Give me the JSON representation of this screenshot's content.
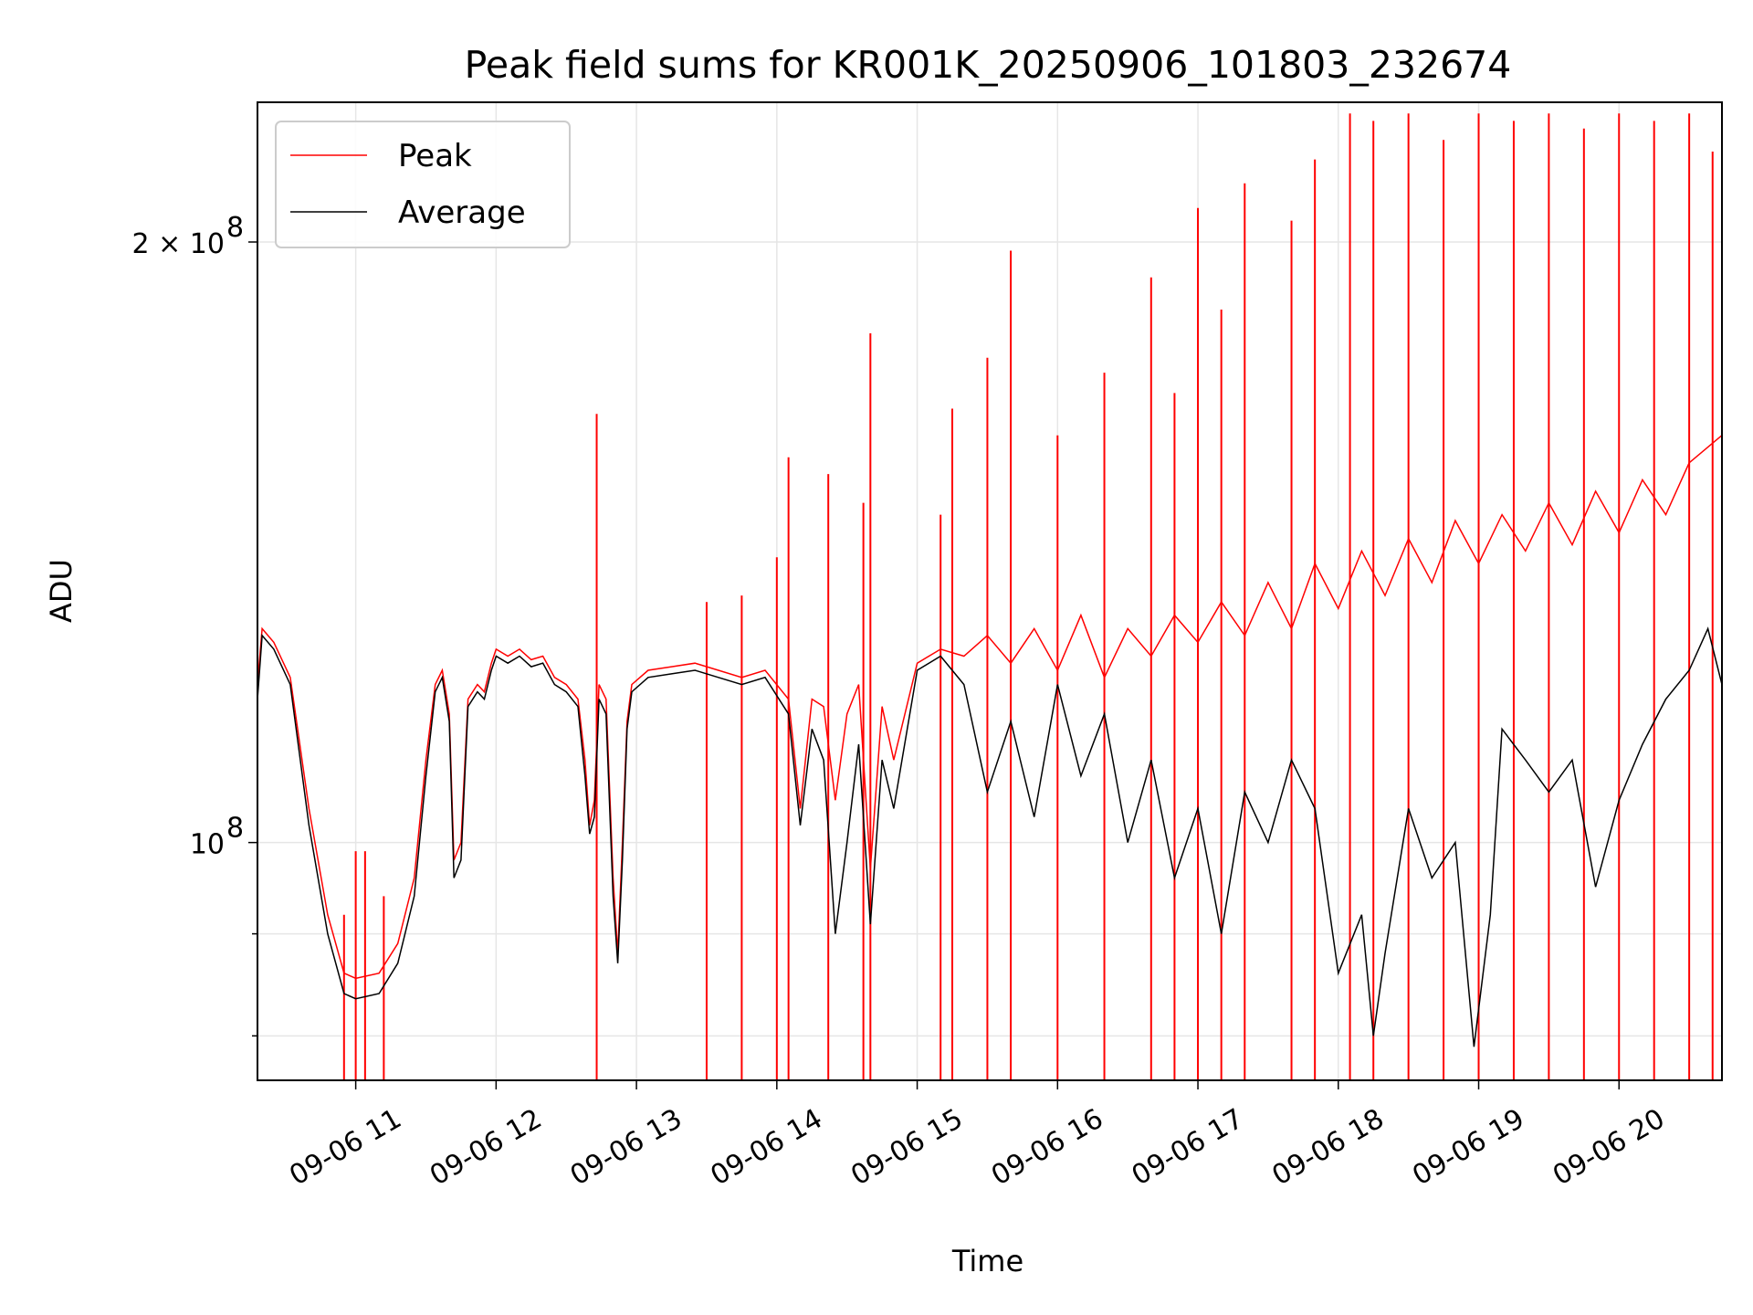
{
  "chart_data": {
    "type": "line",
    "title": "Peak field sums for KR001K_20250906_101803_232674",
    "xlabel": "Time",
    "ylabel": "ADU",
    "yscale": "log",
    "grid": true,
    "legend_position": "top-left",
    "x_ticks": [
      "09-06 11",
      "09-06 12",
      "09-06 13",
      "09-06 14",
      "09-06 15",
      "09-06 16",
      "09-06 17",
      "09-06 18",
      "09-06 19",
      "09-06 20"
    ],
    "y_tick_labels": {
      "major_1e8": "10",
      "major_1e8_exp": "8",
      "major_2e8_prefix": "2 × 10",
      "major_2e8_exp": "8"
    },
    "xlim": [
      "2025-09-06 10:18",
      "2025-09-06 20:44"
    ],
    "ylim": [
      76000000,
      235000000
    ],
    "series": [
      {
        "name": "Peak",
        "color": "#ff0000",
        "points": [
          [
            "2025-09-06 10:18",
            120000000
          ],
          [
            "2025-09-06 10:20",
            128000000
          ],
          [
            "2025-09-06 10:25",
            126000000
          ],
          [
            "2025-09-06 10:32",
            121000000
          ],
          [
            "2025-09-06 10:40",
            104000000
          ],
          [
            "2025-09-06 10:48",
            92000000
          ],
          [
            "2025-09-06 10:55",
            86000000
          ],
          [
            "2025-09-06 11:00",
            85500000
          ],
          [
            "2025-09-06 11:10",
            86000000
          ],
          [
            "2025-09-06 11:18",
            89000000
          ],
          [
            "2025-09-06 11:25",
            96000000
          ],
          [
            "2025-09-06 11:30",
            110000000
          ],
          [
            "2025-09-06 11:34",
            120000000
          ],
          [
            "2025-09-06 11:37",
            122000000
          ],
          [
            "2025-09-06 11:40",
            116000000
          ],
          [
            "2025-09-06 11:42",
            98000000
          ],
          [
            "2025-09-06 11:45",
            100000000
          ],
          [
            "2025-09-06 11:48",
            118000000
          ],
          [
            "2025-09-06 11:52",
            120000000
          ],
          [
            "2025-09-06 11:55",
            119000000
          ],
          [
            "2025-09-06 11:58",
            123000000
          ],
          [
            "2025-09-06 12:00",
            125000000
          ],
          [
            "2025-09-06 12:05",
            124000000
          ],
          [
            "2025-09-06 12:10",
            125000000
          ],
          [
            "2025-09-06 12:15",
            123500000
          ],
          [
            "2025-09-06 12:20",
            124000000
          ],
          [
            "2025-09-06 12:25",
            121000000
          ],
          [
            "2025-09-06 12:30",
            120000000
          ],
          [
            "2025-09-06 12:35",
            118000000
          ],
          [
            "2025-09-06 12:38",
            110000000
          ],
          [
            "2025-09-06 12:40",
            102000000
          ],
          [
            "2025-09-06 12:42",
            105000000
          ],
          [
            "2025-09-06 12:44",
            120000000
          ],
          [
            "2025-09-06 12:47",
            118000000
          ],
          [
            "2025-09-06 12:50",
            96000000
          ],
          [
            "2025-09-06 12:52",
            88000000
          ],
          [
            "2025-09-06 12:54",
            100000000
          ],
          [
            "2025-09-06 12:56",
            115000000
          ],
          [
            "2025-09-06 12:58",
            120000000
          ],
          [
            "2025-09-06 13:05",
            122000000
          ],
          [
            "2025-09-06 13:15",
            122500000
          ],
          [
            "2025-09-06 13:25",
            123000000
          ],
          [
            "2025-09-06 13:35",
            122000000
          ],
          [
            "2025-09-06 13:45",
            121000000
          ],
          [
            "2025-09-06 13:55",
            122000000
          ],
          [
            "2025-09-06 14:05",
            118000000
          ],
          [
            "2025-09-06 14:10",
            104000000
          ],
          [
            "2025-09-06 14:15",
            118000000
          ],
          [
            "2025-09-06 14:20",
            117000000
          ],
          [
            "2025-09-06 14:25",
            105000000
          ],
          [
            "2025-09-06 14:30",
            116000000
          ],
          [
            "2025-09-06 14:35",
            120000000
          ],
          [
            "2025-09-06 14:40",
            97000000
          ],
          [
            "2025-09-06 14:45",
            117000000
          ],
          [
            "2025-09-06 14:50",
            110000000
          ],
          [
            "2025-09-06 15:00",
            123000000
          ],
          [
            "2025-09-06 15:10",
            125000000
          ],
          [
            "2025-09-06 15:20",
            124000000
          ],
          [
            "2025-09-06 15:30",
            127000000
          ],
          [
            "2025-09-06 15:40",
            123000000
          ],
          [
            "2025-09-06 15:50",
            128000000
          ],
          [
            "2025-09-06 16:00",
            122000000
          ],
          [
            "2025-09-06 16:10",
            130000000
          ],
          [
            "2025-09-06 16:20",
            121000000
          ],
          [
            "2025-09-06 16:30",
            128000000
          ],
          [
            "2025-09-06 16:40",
            124000000
          ],
          [
            "2025-09-06 16:50",
            130000000
          ],
          [
            "2025-09-06 17:00",
            126000000
          ],
          [
            "2025-09-06 17:10",
            132000000
          ],
          [
            "2025-09-06 17:20",
            127000000
          ],
          [
            "2025-09-06 17:30",
            135000000
          ],
          [
            "2025-09-06 17:40",
            128000000
          ],
          [
            "2025-09-06 17:50",
            138000000
          ],
          [
            "2025-09-06 18:00",
            131000000
          ],
          [
            "2025-09-06 18:10",
            140000000
          ],
          [
            "2025-09-06 18:20",
            133000000
          ],
          [
            "2025-09-06 18:30",
            142000000
          ],
          [
            "2025-09-06 18:40",
            135000000
          ],
          [
            "2025-09-06 18:50",
            145000000
          ],
          [
            "2025-09-06 19:00",
            138000000
          ],
          [
            "2025-09-06 19:10",
            146000000
          ],
          [
            "2025-09-06 19:20",
            140000000
          ],
          [
            "2025-09-06 19:30",
            148000000
          ],
          [
            "2025-09-06 19:40",
            141000000
          ],
          [
            "2025-09-06 19:50",
            150000000
          ],
          [
            "2025-09-06 20:00",
            143000000
          ],
          [
            "2025-09-06 20:10",
            152000000
          ],
          [
            "2025-09-06 20:20",
            146000000
          ],
          [
            "2025-09-06 20:30",
            155000000
          ],
          [
            "2025-09-06 20:44",
            160000000
          ]
        ],
        "spikes": [
          [
            "2025-09-06 10:55",
            92000000
          ],
          [
            "2025-09-06 11:00",
            99000000
          ],
          [
            "2025-09-06 11:04",
            99000000
          ],
          [
            "2025-09-06 11:12",
            94000000
          ],
          [
            "2025-09-06 12:43",
            164000000
          ],
          [
            "2025-09-06 13:30",
            132000000
          ],
          [
            "2025-09-06 13:45",
            133000000
          ],
          [
            "2025-09-06 14:00",
            139000000
          ],
          [
            "2025-09-06 14:05",
            156000000
          ],
          [
            "2025-09-06 14:22",
            153000000
          ],
          [
            "2025-09-06 14:37",
            148000000
          ],
          [
            "2025-09-06 14:40",
            180000000
          ],
          [
            "2025-09-06 15:10",
            146000000
          ],
          [
            "2025-09-06 15:15",
            165000000
          ],
          [
            "2025-09-06 15:30",
            175000000
          ],
          [
            "2025-09-06 15:40",
            198000000
          ],
          [
            "2025-09-06 16:00",
            160000000
          ],
          [
            "2025-09-06 16:20",
            172000000
          ],
          [
            "2025-09-06 16:40",
            192000000
          ],
          [
            "2025-09-06 16:50",
            168000000
          ],
          [
            "2025-09-06 17:00",
            208000000
          ],
          [
            "2025-09-06 17:10",
            185000000
          ],
          [
            "2025-09-06 17:20",
            214000000
          ],
          [
            "2025-09-06 17:40",
            205000000
          ],
          [
            "2025-09-06 17:50",
            220000000
          ],
          [
            "2025-09-06 18:05",
            232000000
          ],
          [
            "2025-09-06 18:15",
            230000000
          ],
          [
            "2025-09-06 18:30",
            232000000
          ],
          [
            "2025-09-06 18:45",
            225000000
          ],
          [
            "2025-09-06 19:00",
            232000000
          ],
          [
            "2025-09-06 19:15",
            230000000
          ],
          [
            "2025-09-06 19:30",
            232000000
          ],
          [
            "2025-09-06 19:45",
            228000000
          ],
          [
            "2025-09-06 20:00",
            232000000
          ],
          [
            "2025-09-06 20:15",
            230000000
          ],
          [
            "2025-09-06 20:30",
            232000000
          ],
          [
            "2025-09-06 20:40",
            222000000
          ]
        ]
      },
      {
        "name": "Average",
        "color": "#000000",
        "points": [
          [
            "2025-09-06 10:18",
            118000000
          ],
          [
            "2025-09-06 10:20",
            127000000
          ],
          [
            "2025-09-06 10:25",
            125000000
          ],
          [
            "2025-09-06 10:32",
            120000000
          ],
          [
            "2025-09-06 10:40",
            102000000
          ],
          [
            "2025-09-06 10:48",
            90000000
          ],
          [
            "2025-09-06 10:55",
            84000000
          ],
          [
            "2025-09-06 11:00",
            83500000
          ],
          [
            "2025-09-06 11:10",
            84000000
          ],
          [
            "2025-09-06 11:18",
            87000000
          ],
          [
            "2025-09-06 11:25",
            94000000
          ],
          [
            "2025-09-06 11:30",
            108000000
          ],
          [
            "2025-09-06 11:34",
            119000000
          ],
          [
            "2025-09-06 11:37",
            121000000
          ],
          [
            "2025-09-06 11:40",
            115000000
          ],
          [
            "2025-09-06 11:42",
            96000000
          ],
          [
            "2025-09-06 11:45",
            98000000
          ],
          [
            "2025-09-06 11:48",
            117000000
          ],
          [
            "2025-09-06 11:52",
            119000000
          ],
          [
            "2025-09-06 11:55",
            118000000
          ],
          [
            "2025-09-06 11:58",
            122000000
          ],
          [
            "2025-09-06 12:00",
            124000000
          ],
          [
            "2025-09-06 12:05",
            123000000
          ],
          [
            "2025-09-06 12:10",
            124000000
          ],
          [
            "2025-09-06 12:15",
            122500000
          ],
          [
            "2025-09-06 12:20",
            123000000
          ],
          [
            "2025-09-06 12:25",
            120000000
          ],
          [
            "2025-09-06 12:30",
            119000000
          ],
          [
            "2025-09-06 12:35",
            117000000
          ],
          [
            "2025-09-06 12:38",
            108000000
          ],
          [
            "2025-09-06 12:40",
            101000000
          ],
          [
            "2025-09-06 12:42",
            103000000
          ],
          [
            "2025-09-06 12:44",
            118000000
          ],
          [
            "2025-09-06 12:47",
            116000000
          ],
          [
            "2025-09-06 12:50",
            94000000
          ],
          [
            "2025-09-06 12:52",
            87000000
          ],
          [
            "2025-09-06 12:54",
            98000000
          ],
          [
            "2025-09-06 12:56",
            114000000
          ],
          [
            "2025-09-06 12:58",
            119000000
          ],
          [
            "2025-09-06 13:05",
            121000000
          ],
          [
            "2025-09-06 13:15",
            121500000
          ],
          [
            "2025-09-06 13:25",
            122000000
          ],
          [
            "2025-09-06 13:35",
            121000000
          ],
          [
            "2025-09-06 13:45",
            120000000
          ],
          [
            "2025-09-06 13:55",
            121000000
          ],
          [
            "2025-09-06 14:05",
            116000000
          ],
          [
            "2025-09-06 14:10",
            102000000
          ],
          [
            "2025-09-06 14:15",
            114000000
          ],
          [
            "2025-09-06 14:20",
            110000000
          ],
          [
            "2025-09-06 14:25",
            90000000
          ],
          [
            "2025-09-06 14:30",
            100000000
          ],
          [
            "2025-09-06 14:35",
            112000000
          ],
          [
            "2025-09-06 14:40",
            91000000
          ],
          [
            "2025-09-06 14:45",
            110000000
          ],
          [
            "2025-09-06 14:50",
            104000000
          ],
          [
            "2025-09-06 15:00",
            122000000
          ],
          [
            "2025-09-06 15:10",
            124000000
          ],
          [
            "2025-09-06 15:20",
            120000000
          ],
          [
            "2025-09-06 15:30",
            106000000
          ],
          [
            "2025-09-06 15:40",
            115000000
          ],
          [
            "2025-09-06 15:50",
            103000000
          ],
          [
            "2025-09-06 16:00",
            120000000
          ],
          [
            "2025-09-06 16:10",
            108000000
          ],
          [
            "2025-09-06 16:20",
            116000000
          ],
          [
            "2025-09-06 16:30",
            100000000
          ],
          [
            "2025-09-06 16:40",
            110000000
          ],
          [
            "2025-09-06 16:50",
            96000000
          ],
          [
            "2025-09-06 17:00",
            104000000
          ],
          [
            "2025-09-06 17:10",
            90000000
          ],
          [
            "2025-09-06 17:20",
            106000000
          ],
          [
            "2025-09-06 17:30",
            100000000
          ],
          [
            "2025-09-06 17:40",
            110000000
          ],
          [
            "2025-09-06 17:50",
            104000000
          ],
          [
            "2025-09-06 18:00",
            86000000
          ],
          [
            "2025-09-06 18:10",
            92000000
          ],
          [
            "2025-09-06 18:15",
            80000000
          ],
          [
            "2025-09-06 18:20",
            88000000
          ],
          [
            "2025-09-06 18:30",
            104000000
          ],
          [
            "2025-09-06 18:40",
            96000000
          ],
          [
            "2025-09-06 18:50",
            100000000
          ],
          [
            "2025-09-06 18:58",
            79000000
          ],
          [
            "2025-09-06 19:05",
            92000000
          ],
          [
            "2025-09-06 19:10",
            114000000
          ],
          [
            "2025-09-06 19:20",
            110000000
          ],
          [
            "2025-09-06 19:30",
            106000000
          ],
          [
            "2025-09-06 19:40",
            110000000
          ],
          [
            "2025-09-06 19:50",
            95000000
          ],
          [
            "2025-09-06 20:00",
            105000000
          ],
          [
            "2025-09-06 20:10",
            112000000
          ],
          [
            "2025-09-06 20:20",
            118000000
          ],
          [
            "2025-09-06 20:30",
            122000000
          ],
          [
            "2025-09-06 20:38",
            128000000
          ],
          [
            "2025-09-06 20:44",
            120000000
          ]
        ]
      }
    ]
  }
}
